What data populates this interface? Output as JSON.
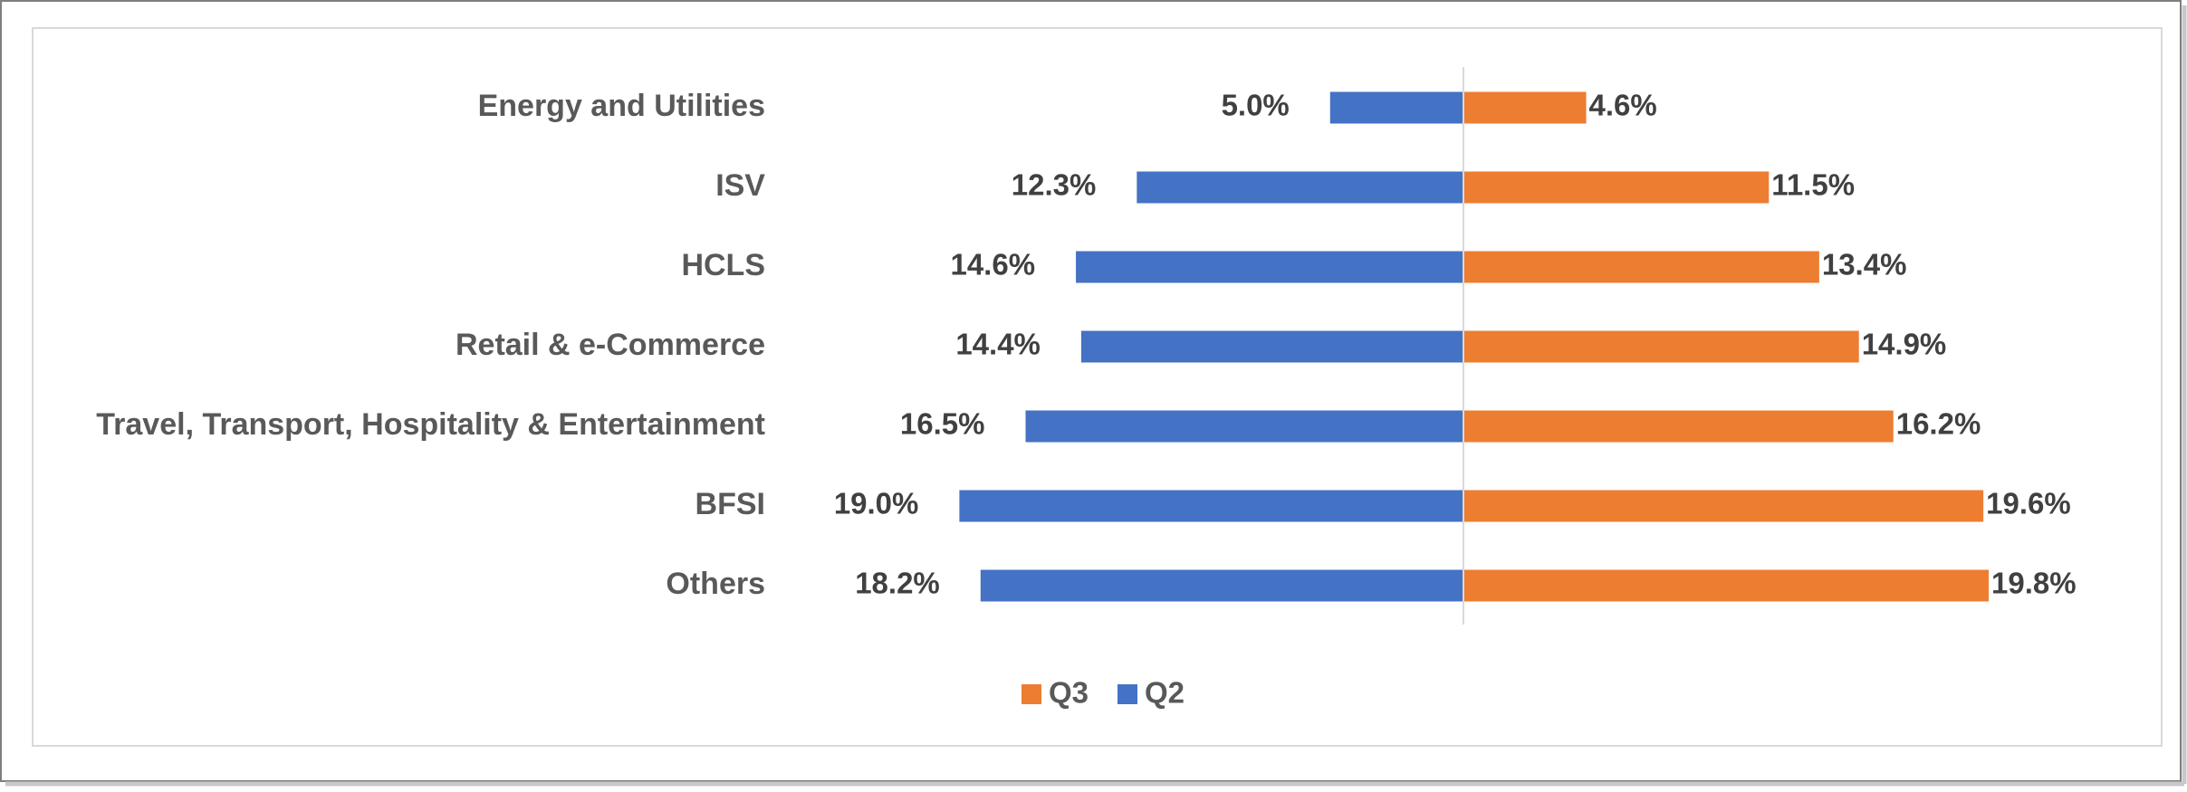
{
  "chart_data": {
    "type": "butterfly-bar",
    "categories": [
      "Energy and Utilities",
      "ISV",
      "HCLS",
      "Retail & e-Commerce",
      "Travel, Transport, Hospitality & Entertainment",
      "BFSI",
      "Others"
    ],
    "series": [
      {
        "name": "Q3",
        "color": "#ed7d31",
        "values": [
          4.6,
          11.5,
          13.4,
          14.9,
          16.2,
          19.6,
          19.8
        ],
        "value_labels": [
          "4.6%",
          "11.5%",
          "13.4%",
          "14.9%",
          "16.2%",
          "19.6%",
          "19.8%"
        ]
      },
      {
        "name": "Q2",
        "color": "#4472c4",
        "values": [
          5.0,
          12.3,
          14.6,
          14.4,
          16.5,
          19.0,
          18.2
        ],
        "value_labels": [
          "5.0%",
          "12.3%",
          "14.6%",
          "14.4%",
          "16.5%",
          "19.0%",
          "18.2%"
        ]
      }
    ]
  }
}
